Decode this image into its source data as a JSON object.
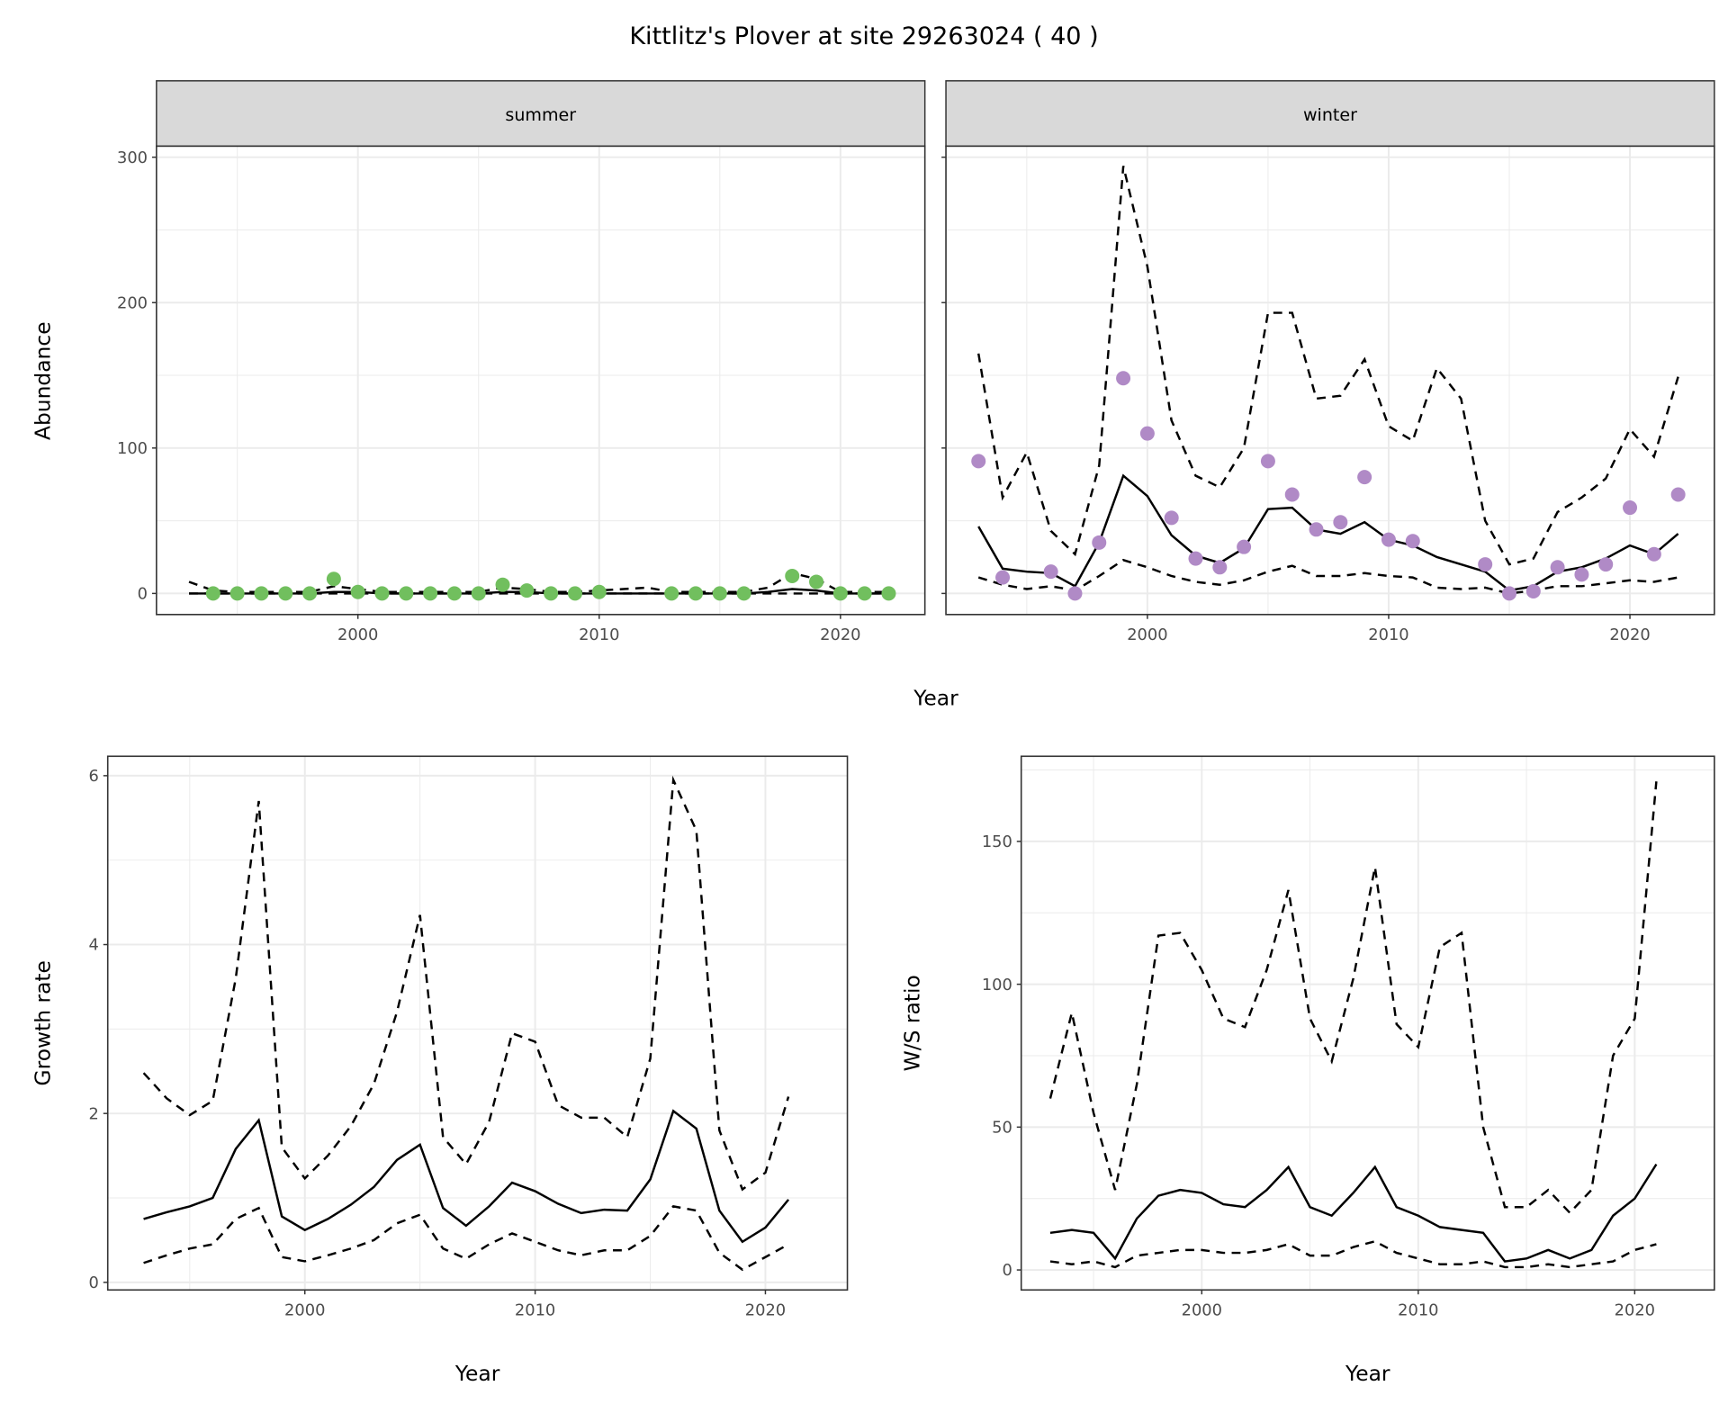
{
  "chart_data": [
    {
      "type": "line",
      "title": "Kittlitz's Plover at site 29263024 ( 40 )",
      "facet": "summer",
      "xlabel": "Year",
      "ylabel": "Abundance",
      "xlim": [
        1991.65,
        2023.5
      ],
      "ylim": [
        -14.5,
        307.6
      ],
      "xticks": [
        2000,
        2010,
        2020
      ],
      "yticks": [
        0,
        100,
        200,
        300
      ],
      "point_color": "#71bf5e",
      "points": {
        "x": [
          1994,
          1995,
          1996,
          1997,
          1998,
          1999,
          2000,
          2001,
          2002,
          2003,
          2004,
          2005,
          2006,
          2007,
          2008,
          2009,
          2010,
          2013,
          2014,
          2015,
          2016,
          2018,
          2019,
          2020,
          2021,
          2022
        ],
        "y": [
          0,
          0,
          0,
          0,
          0,
          10,
          1,
          0,
          0,
          0,
          0,
          0,
          6,
          2,
          0,
          0,
          1,
          0,
          0,
          0,
          0,
          12,
          8,
          0,
          0,
          0
        ]
      },
      "years": [
        1993,
        1994,
        1995,
        1996,
        1997,
        1998,
        1999,
        2000,
        2001,
        2002,
        2003,
        2004,
        2005,
        2006,
        2007,
        2008,
        2009,
        2010,
        2011,
        2012,
        2013,
        2014,
        2015,
        2016,
        2017,
        2018,
        2019,
        2020,
        2021,
        2022
      ],
      "mean": [
        0,
        0,
        0,
        0,
        0,
        0,
        1,
        1,
        0,
        0,
        0,
        0,
        0,
        1,
        1,
        0,
        0,
        0,
        0,
        0,
        0,
        0,
        0,
        0,
        1,
        3,
        2,
        0,
        0,
        0
      ],
      "upper": [
        8,
        2,
        1,
        1,
        1,
        1,
        5,
        3,
        1,
        1,
        1,
        1,
        1,
        4,
        3,
        1,
        1,
        2,
        3,
        4,
        1,
        1,
        1,
        1,
        4,
        14,
        10,
        1,
        1,
        1
      ],
      "lower": [
        0,
        0,
        0,
        0,
        0,
        0,
        0,
        0,
        0,
        0,
        0,
        0,
        0,
        0,
        0,
        0,
        0,
        0,
        0,
        0,
        0,
        0,
        0,
        0,
        0,
        0,
        0,
        0,
        0,
        0
      ]
    },
    {
      "type": "line",
      "facet": "winter",
      "xlim": [
        1991.65,
        2023.5
      ],
      "ylim": [
        -14.5,
        307.6
      ],
      "xticks": [
        2000,
        2010,
        2020
      ],
      "yticks": [
        0,
        100,
        200,
        300
      ],
      "point_color": "#b08ac6",
      "points": {
        "x": [
          1993,
          1994,
          1996,
          1997,
          1998,
          1999,
          2000,
          2001,
          2002,
          2003,
          2004,
          2005,
          2006,
          2007,
          2008,
          2009,
          2010,
          2011,
          2014,
          2015,
          2016,
          2017,
          2018,
          2019,
          2020,
          2021,
          2022
        ],
        "y": [
          91,
          11,
          15,
          0,
          35,
          148,
          110,
          52,
          24,
          18,
          32,
          91,
          68,
          44,
          49,
          80,
          37,
          36,
          20,
          0,
          1.5,
          18,
          13,
          20,
          59,
          27,
          68
        ]
      },
      "years": [
        1993,
        1994,
        1995,
        1996,
        1997,
        1998,
        1999,
        2000,
        2001,
        2002,
        2003,
        2004,
        2005,
        2006,
        2007,
        2008,
        2009,
        2010,
        2011,
        2012,
        2013,
        2014,
        2015,
        2016,
        2017,
        2018,
        2019,
        2020,
        2021,
        2022
      ],
      "mean": [
        46,
        17,
        15,
        14,
        5,
        35,
        81,
        67,
        40,
        26,
        21,
        31,
        58,
        59,
        44,
        41,
        49,
        37,
        33,
        25,
        20,
        15,
        2,
        5,
        15,
        18,
        24,
        33,
        27,
        41
      ],
      "upper": [
        165,
        66,
        97,
        43,
        27,
        88,
        294,
        225,
        119,
        81,
        73,
        100,
        193,
        193,
        134,
        136,
        161,
        115,
        105,
        155,
        134,
        50,
        20,
        24,
        56,
        66,
        79,
        113,
        94,
        149
      ],
      "lower": [
        11,
        6,
        3,
        5,
        2,
        12,
        23,
        18,
        12,
        8,
        6,
        9,
        15,
        19,
        12,
        12,
        14,
        12,
        11,
        4,
        3,
        4,
        0,
        2,
        5,
        5,
        7,
        9,
        8,
        11
      ]
    },
    {
      "type": "line",
      "xlabel": "Year",
      "ylabel": "Growth rate",
      "xlim": [
        1991.44,
        2023.56
      ],
      "ylim": [
        -0.09,
        6.23
      ],
      "xticks": [
        2000,
        2010,
        2020
      ],
      "yticks": [
        0,
        2,
        4,
        6
      ],
      "years": [
        1993,
        1994,
        1995,
        1996,
        1997,
        1998,
        1999,
        2000,
        2001,
        2002,
        2003,
        2004,
        2005,
        2006,
        2007,
        2008,
        2009,
        2010,
        2011,
        2012,
        2013,
        2014,
        2015,
        2016,
        2017,
        2018,
        2019,
        2020,
        2021
      ],
      "mean": [
        0.75,
        0.83,
        0.9,
        1.0,
        1.58,
        1.92,
        0.78,
        0.62,
        0.75,
        0.92,
        1.13,
        1.45,
        1.63,
        0.88,
        0.67,
        0.9,
        1.18,
        1.08,
        0.93,
        0.82,
        0.86,
        0.85,
        1.22,
        2.03,
        1.82,
        0.85,
        0.48,
        0.65,
        0.98
      ],
      "upper": [
        2.48,
        2.18,
        1.98,
        2.15,
        3.6,
        5.7,
        1.6,
        1.23,
        1.5,
        1.85,
        2.35,
        3.2,
        4.35,
        1.72,
        1.4,
        1.9,
        2.95,
        2.85,
        2.1,
        1.95,
        1.95,
        1.72,
        2.65,
        5.95,
        5.35,
        1.8,
        1.1,
        1.3,
        2.2
      ],
      "lower": [
        0.23,
        0.32,
        0.4,
        0.45,
        0.75,
        0.88,
        0.3,
        0.25,
        0.32,
        0.4,
        0.5,
        0.7,
        0.8,
        0.4,
        0.28,
        0.45,
        0.58,
        0.48,
        0.38,
        0.32,
        0.38,
        0.38,
        0.55,
        0.9,
        0.85,
        0.35,
        0.15,
        0.3,
        0.45
      ]
    },
    {
      "type": "line",
      "xlabel": "Year",
      "ylabel": "W/S ratio",
      "xlim": [
        1991.66,
        2023.68
      ],
      "ylim": [
        -7,
        179.8
      ],
      "xticks": [
        2000,
        2010,
        2020
      ],
      "yticks": [
        0,
        50,
        100,
        150
      ],
      "years": [
        1993,
        1994,
        1995,
        1996,
        1997,
        1998,
        1999,
        2000,
        2001,
        2002,
        2003,
        2004,
        2005,
        2006,
        2007,
        2008,
        2009,
        2010,
        2011,
        2012,
        2013,
        2014,
        2015,
        2016,
        2017,
        2018,
        2019,
        2020,
        2021
      ],
      "mean": [
        13,
        14,
        13,
        4,
        18,
        26,
        28,
        27,
        23,
        22,
        28,
        36,
        22,
        19,
        27,
        36,
        22,
        19,
        15,
        14,
        13,
        3,
        4,
        7,
        4,
        7,
        19,
        25,
        37
      ],
      "upper": [
        60,
        90,
        55,
        28,
        65,
        117,
        118,
        105,
        88,
        85,
        105,
        133,
        88,
        73,
        102,
        141,
        86,
        78,
        113,
        118,
        50,
        22,
        22,
        28,
        20,
        28,
        75,
        88,
        171
      ],
      "lower": [
        3,
        2,
        3,
        1,
        5,
        6,
        7,
        7,
        6,
        6,
        7,
        9,
        5,
        5,
        8,
        10,
        6,
        4,
        2,
        2,
        3,
        1,
        1,
        2,
        1,
        2,
        3,
        7,
        9
      ]
    }
  ]
}
